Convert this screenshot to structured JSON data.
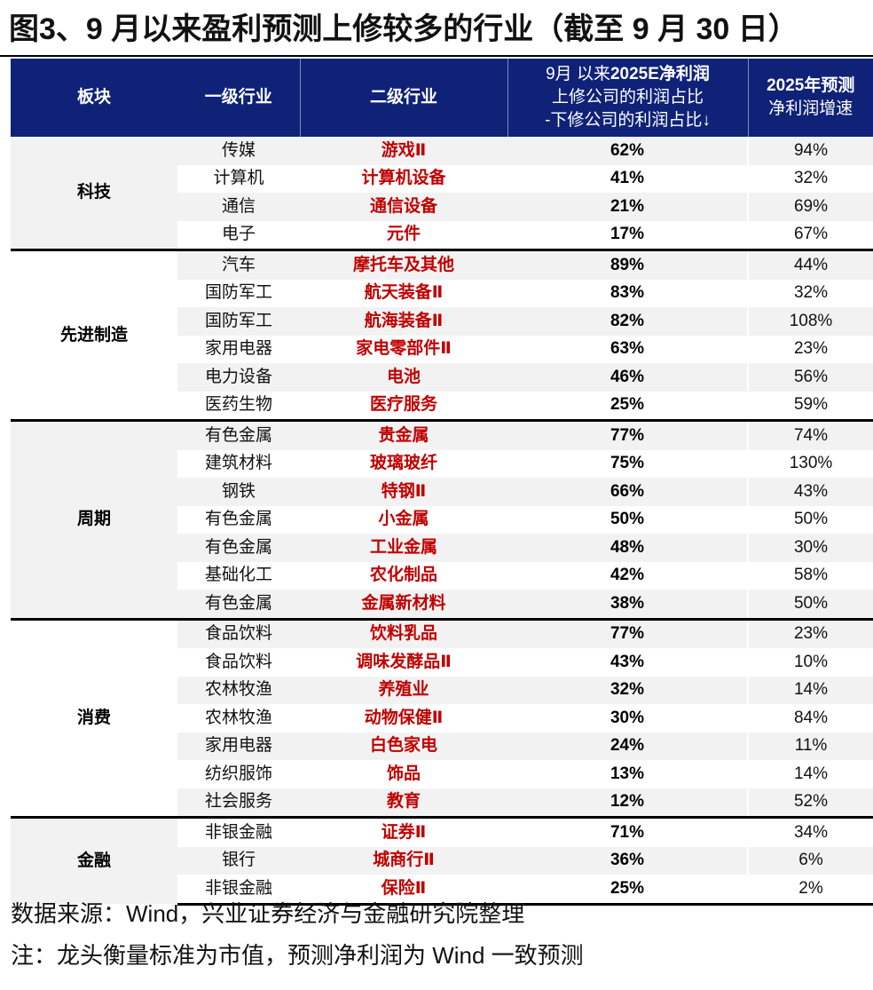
{
  "title": "图3、9 月以来盈利预测上修较多的行业（截至 9 月 30 日）",
  "table": {
    "headers": {
      "sector": "板块",
      "industry_l1": "一级行业",
      "industry_l2": "二级行业",
      "revision_line1_normal": "9月 以来",
      "revision_line1_bold": "2025E净利润",
      "revision_line2": "上修公司的利润占比",
      "revision_line3": "-下修公司的利润占比↓",
      "growth_line1": "2025年预测",
      "growth_line2": "净利润增速"
    },
    "groups": [
      {
        "sector": "科技",
        "rows": [
          {
            "l1": "传媒",
            "l2": "游戏Ⅱ",
            "revision": "62%",
            "growth": "94%"
          },
          {
            "l1": "计算机",
            "l2": "计算机设备",
            "revision": "41%",
            "growth": "32%"
          },
          {
            "l1": "通信",
            "l2": "通信设备",
            "revision": "21%",
            "growth": "69%"
          },
          {
            "l1": "电子",
            "l2": "元件",
            "revision": "17%",
            "growth": "67%"
          }
        ]
      },
      {
        "sector": "先进制造",
        "rows": [
          {
            "l1": "汽车",
            "l2": "摩托车及其他",
            "revision": "89%",
            "growth": "44%"
          },
          {
            "l1": "国防军工",
            "l2": "航天装备Ⅱ",
            "revision": "83%",
            "growth": "32%"
          },
          {
            "l1": "国防军工",
            "l2": "航海装备Ⅱ",
            "revision": "82%",
            "growth": "108%"
          },
          {
            "l1": "家用电器",
            "l2": "家电零部件Ⅱ",
            "revision": "63%",
            "growth": "23%"
          },
          {
            "l1": "电力设备",
            "l2": "电池",
            "revision": "46%",
            "growth": "56%"
          },
          {
            "l1": "医药生物",
            "l2": "医疗服务",
            "revision": "25%",
            "growth": "59%"
          }
        ]
      },
      {
        "sector": "周期",
        "rows": [
          {
            "l1": "有色金属",
            "l2": "贵金属",
            "revision": "77%",
            "growth": "74%"
          },
          {
            "l1": "建筑材料",
            "l2": "玻璃玻纤",
            "revision": "75%",
            "growth": "130%"
          },
          {
            "l1": "钢铁",
            "l2": "特钢Ⅱ",
            "revision": "66%",
            "growth": "43%"
          },
          {
            "l1": "有色金属",
            "l2": "小金属",
            "revision": "50%",
            "growth": "50%"
          },
          {
            "l1": "有色金属",
            "l2": "工业金属",
            "revision": "48%",
            "growth": "30%"
          },
          {
            "l1": "基础化工",
            "l2": "农化制品",
            "revision": "42%",
            "growth": "58%"
          },
          {
            "l1": "有色金属",
            "l2": "金属新材料",
            "revision": "38%",
            "growth": "50%"
          }
        ]
      },
      {
        "sector": "消费",
        "rows": [
          {
            "l1": "食品饮料",
            "l2": "饮料乳品",
            "revision": "77%",
            "growth": "23%"
          },
          {
            "l1": "食品饮料",
            "l2": "调味发酵品Ⅱ",
            "revision": "43%",
            "growth": "10%"
          },
          {
            "l1": "农林牧渔",
            "l2": "养殖业",
            "revision": "32%",
            "growth": "14%"
          },
          {
            "l1": "农林牧渔",
            "l2": "动物保健Ⅱ",
            "revision": "30%",
            "growth": "84%"
          },
          {
            "l1": "家用电器",
            "l2": "白色家电",
            "revision": "24%",
            "growth": "11%"
          },
          {
            "l1": "纺织服饰",
            "l2": "饰品",
            "revision": "13%",
            "growth": "14%"
          },
          {
            "l1": "社会服务",
            "l2": "教育",
            "revision": "12%",
            "growth": "52%"
          }
        ]
      },
      {
        "sector": "金融",
        "rows": [
          {
            "l1": "非银金融",
            "l2": "证券Ⅱ",
            "revision": "71%",
            "growth": "34%"
          },
          {
            "l1": "银行",
            "l2": "城商行Ⅱ",
            "revision": "36%",
            "growth": "6%"
          },
          {
            "l1": "非银金融",
            "l2": "保险Ⅱ",
            "revision": "25%",
            "growth": "2%"
          }
        ]
      }
    ]
  },
  "footer": {
    "source": "数据来源：Wind，兴业证券经济与金融研究院整理",
    "note": "注：龙头衡量标准为市值，预测净利润为 Wind 一致预测"
  },
  "colors": {
    "header_bg": "#0f2277",
    "highlight_red": "#c00000",
    "row_gray": "#f2f2f2"
  }
}
